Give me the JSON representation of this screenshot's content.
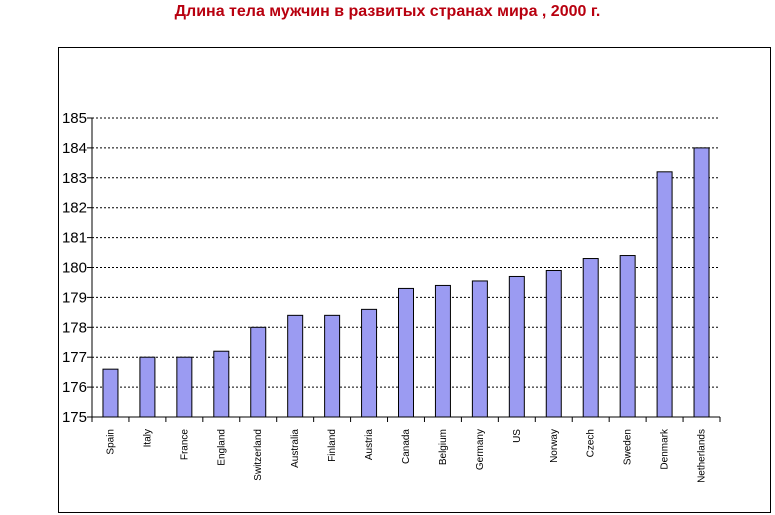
{
  "chart_data": {
    "type": "bar",
    "title": "Длина тела мужчин в развитых странах мира , 2000 г.",
    "title_color": "#B8000F",
    "bar_color": "#9B9BF2",
    "xlabel": "",
    "ylabel": "",
    "ylim": [
      175,
      185
    ],
    "yticks": [
      175,
      176,
      177,
      178,
      179,
      180,
      181,
      182,
      183,
      184,
      185
    ],
    "ytick_labels": [
      "175",
      "176",
      "177",
      "178",
      "179",
      "180",
      "181",
      "182",
      "183",
      "184",
      "185"
    ],
    "grid": true,
    "categories": [
      "Spain",
      "Italy",
      "France",
      "England",
      "Switzerland",
      "Australia",
      "Finland",
      "Austria",
      "Canada",
      "Belgium",
      "Germany",
      "US",
      "Norway",
      "Czech",
      "Sweden",
      "Denmark",
      "Netherlands"
    ],
    "values": [
      176.6,
      177.0,
      177.0,
      177.2,
      178.0,
      178.4,
      178.4,
      178.6,
      179.3,
      179.4,
      179.55,
      179.7,
      179.9,
      180.3,
      180.4,
      183.2,
      184.0
    ]
  }
}
